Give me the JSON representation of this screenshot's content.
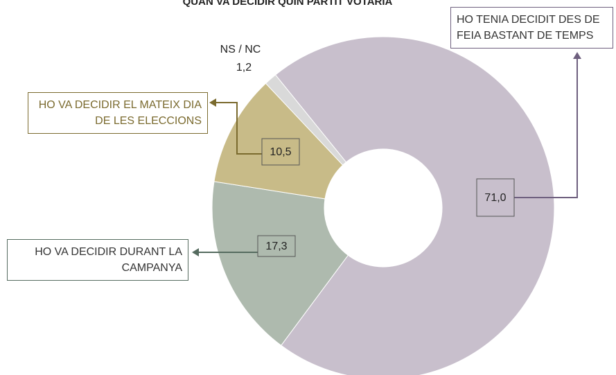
{
  "chart_data": {
    "type": "donut",
    "title": "QUAN VA DECIDIR QUIN PARTIT VOTARIA",
    "categories": [
      "HO TENIA DECIDIT DES DE FEIA BASTANT DE TEMPS",
      "HO VA DECIDIR DURANT LA CAMPANYA",
      "HO VA DECIDIR EL MATEIX DIA DE LES ELECCIONS",
      "NS / NC"
    ],
    "values": [
      71.0,
      17.3,
      10.5,
      1.2
    ],
    "value_labels": [
      "71,0",
      "17,3",
      "10,5",
      "1,2"
    ],
    "colors": [
      "#c8bfcc",
      "#aebaae",
      "#c8bb88",
      "#d9d9d9"
    ]
  }
}
